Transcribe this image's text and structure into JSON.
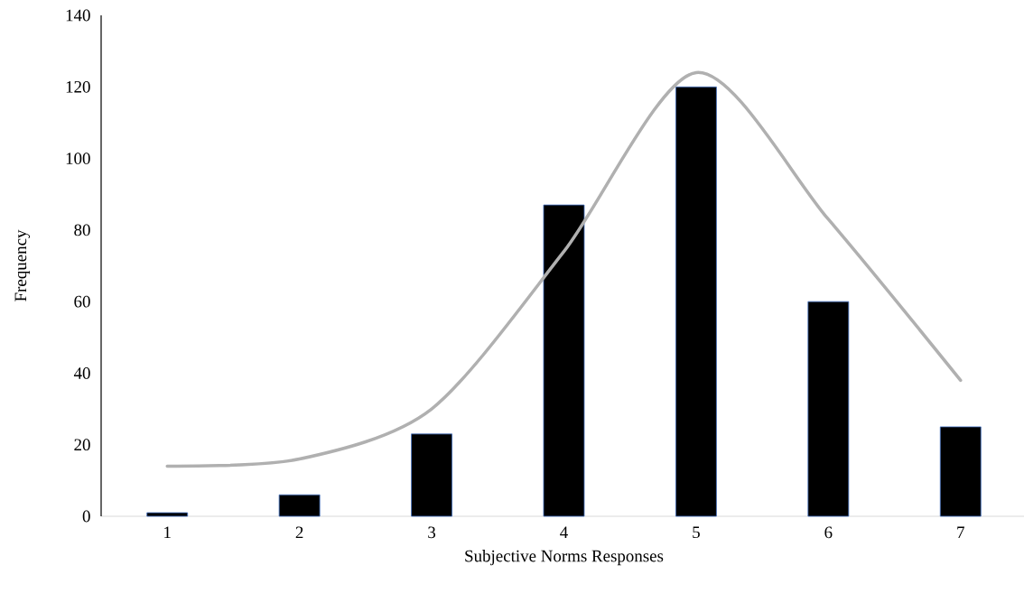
{
  "chart_data": {
    "type": "bar",
    "xlabel": "Subjective Norms Responses",
    "ylabel": "Frequency",
    "categories": [
      "1",
      "2",
      "3",
      "4",
      "5",
      "6",
      "7"
    ],
    "ylim": [
      0,
      140
    ],
    "yticks": [
      0,
      20,
      40,
      60,
      80,
      100,
      120,
      140
    ],
    "series": [
      {
        "color": "#000000",
        "values": [
          1,
          6,
          23,
          87,
          120,
          60,
          25
        ]
      },
      {
        "type": "line",
        "color": "#b0b0b0",
        "values": [
          14,
          16,
          30,
          74,
          124,
          83,
          38
        ]
      }
    ]
  }
}
